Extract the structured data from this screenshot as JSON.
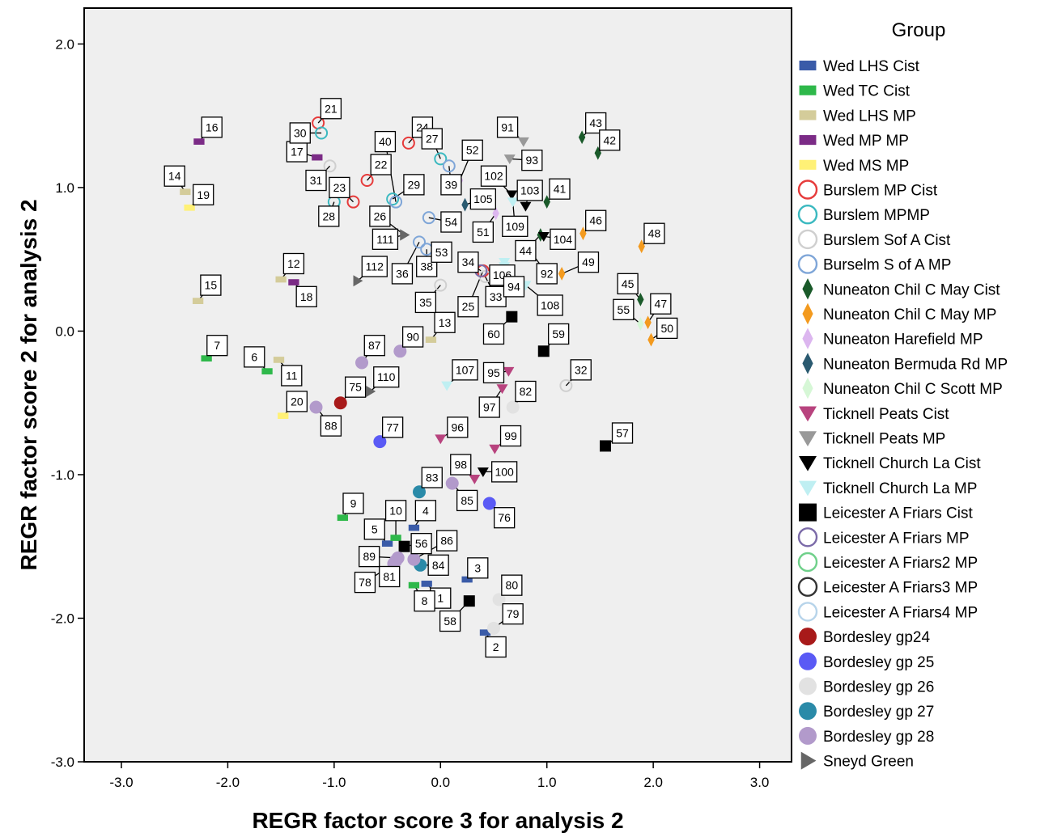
{
  "chart_data": {
    "type": "scatter",
    "xlabel": "REGR factor score   3 for analysis 2",
    "ylabel": "REGR factor score   2 for analysis 2",
    "xlim": [
      -3.35,
      3.3
    ],
    "ylim": [
      -3.0,
      2.25
    ],
    "xticks": [
      -3.0,
      -2.0,
      -1.0,
      0.0,
      1.0,
      2.0,
      3.0
    ],
    "yticks": [
      -3.0,
      -2.0,
      -1.0,
      0.0,
      1.0,
      2.0
    ],
    "xtick_labels": [
      "-3.0",
      "-2.0",
      "-1.0",
      "0.0",
      "1.0",
      "2.0",
      "3.0"
    ],
    "ytick_labels": [
      "-3.0",
      "-2.0",
      "-1.0",
      "0.0",
      "1.0",
      "2.0"
    ],
    "grid": false,
    "plot_background": "#efefef",
    "legend_title": "Group",
    "legend_placement": "right",
    "groups": [
      {
        "name": "Wed LHS Cist",
        "marker": "rect",
        "color": "#3a5ba8"
      },
      {
        "name": "Wed TC Cist",
        "marker": "rect",
        "color": "#2eb84a"
      },
      {
        "name": "Wed LHS MP",
        "marker": "rect",
        "color": "#d4cc9a"
      },
      {
        "name": "Wed MP MP",
        "marker": "rect",
        "color": "#7b2b86"
      },
      {
        "name": "Wed MS MP",
        "marker": "rect",
        "color": "#fff176"
      },
      {
        "name": "Burslem MP Cist",
        "marker": "ring",
        "color": "#e63b3b"
      },
      {
        "name": "Burslem  MPMP",
        "marker": "ring",
        "color": "#3bb9c0"
      },
      {
        "name": "Burslem Sof A Cist",
        "marker": "ring",
        "color": "#cfcfcf"
      },
      {
        "name": "Burselm  S of A  MP",
        "marker": "ring",
        "color": "#7fa6d8"
      },
      {
        "name": "Nuneaton Chil C May Cist",
        "marker": "diamond",
        "color": "#1a5a2a"
      },
      {
        "name": "Nuneaton Chil C May MP",
        "marker": "diamond",
        "color": "#f39a1e"
      },
      {
        "name": "Nuneaton Harefield MP",
        "marker": "diamond",
        "color": "#dcb6ef"
      },
      {
        "name": "Nuneaton Bermuda Rd MP",
        "marker": "diamond",
        "color": "#2a5a70"
      },
      {
        "name": "Nuneaton Chil C Scott MP",
        "marker": "diamond",
        "color": "#d6f7d6"
      },
      {
        "name": "Ticknell Peats Cist",
        "marker": "tri-down",
        "color": "#b8437e"
      },
      {
        "name": "Ticknell Peats MP",
        "marker": "tri-down",
        "color": "#999999"
      },
      {
        "name": "Ticknell Church La Cist",
        "marker": "tri-down",
        "color": "#000000"
      },
      {
        "name": "Ticknell Church La MP",
        "marker": "tri-down",
        "color": "#bfeff2"
      },
      {
        "name": "Leicester A Friars Cist",
        "marker": "square",
        "color": "#000000"
      },
      {
        "name": "Leicester A Friars MP",
        "marker": "ring",
        "color": "#7b6aa8"
      },
      {
        "name": "Leicester A Friars2 MP",
        "marker": "ring",
        "color": "#6fd08a"
      },
      {
        "name": "Leicester A Friars3 MP",
        "marker": "ring",
        "color": "#333333"
      },
      {
        "name": "Leicester A Friars4 MP",
        "marker": "ring",
        "color": "#b7d4ea"
      },
      {
        "name": "Bordesley gp24",
        "marker": "circle",
        "color": "#a81a1a"
      },
      {
        "name": "Bordesley gp 25",
        "marker": "circle",
        "color": "#5a5af5"
      },
      {
        "name": "Bordesley gp 26",
        "marker": "circle",
        "color": "#e2e2e2"
      },
      {
        "name": "Bordesley gp 27",
        "marker": "circle",
        "color": "#2a8aa8"
      },
      {
        "name": "Bordesley gp 28",
        "marker": "circle",
        "color": "#b29acb"
      },
      {
        "name": "Sneyd Green",
        "marker": "tri-right",
        "color": "#666666"
      }
    ],
    "points": [
      {
        "label": "1",
        "group": 0,
        "x": -0.13,
        "y": -1.76,
        "lx": 0.0,
        "ly": -1.86
      },
      {
        "label": "2",
        "group": 0,
        "x": 0.42,
        "y": -2.1,
        "lx": 0.52,
        "ly": -2.2
      },
      {
        "label": "3",
        "group": 0,
        "x": 0.25,
        "y": -1.73,
        "lx": 0.35,
        "ly": -1.65
      },
      {
        "label": "4",
        "group": 0,
        "x": -0.25,
        "y": -1.37,
        "lx": -0.14,
        "ly": -1.25
      },
      {
        "label": "5",
        "group": 0,
        "x": -0.5,
        "y": -1.48,
        "lx": -0.62,
        "ly": -1.38
      },
      {
        "label": "8",
        "group": 1,
        "x": -0.25,
        "y": -1.77,
        "lx": -0.15,
        "ly": -1.88
      },
      {
        "label": "10",
        "group": 1,
        "x": -0.42,
        "y": -1.44,
        "lx": -0.42,
        "ly": -1.25
      },
      {
        "label": "6",
        "group": 1,
        "x": -1.63,
        "y": -0.28,
        "lx": -1.75,
        "ly": -0.18
      },
      {
        "label": "7",
        "group": 1,
        "x": -2.2,
        "y": -0.19,
        "lx": -2.1,
        "ly": -0.1
      },
      {
        "label": "9",
        "group": 1,
        "x": -0.92,
        "y": -1.3,
        "lx": -0.82,
        "ly": -1.2
      },
      {
        "label": "11",
        "group": 2,
        "x": -1.52,
        "y": -0.2,
        "lx": -1.4,
        "ly": -0.31
      },
      {
        "label": "12",
        "group": 2,
        "x": -1.5,
        "y": 0.36,
        "lx": -1.38,
        "ly": 0.47
      },
      {
        "label": "14",
        "group": 2,
        "x": -2.4,
        "y": 0.97,
        "lx": -2.5,
        "ly": 1.08
      },
      {
        "label": "15",
        "group": 2,
        "x": -2.28,
        "y": 0.21,
        "lx": -2.16,
        "ly": 0.32
      },
      {
        "label": "13",
        "group": 2,
        "x": -0.09,
        "y": -0.06,
        "lx": 0.04,
        "ly": 0.06
      },
      {
        "label": "16",
        "group": 3,
        "x": -2.27,
        "y": 1.32,
        "lx": -2.15,
        "ly": 1.42
      },
      {
        "label": "17",
        "group": 3,
        "x": -1.16,
        "y": 1.21,
        "lx": -1.35,
        "ly": 1.25
      },
      {
        "label": "18",
        "group": 3,
        "x": -1.38,
        "y": 0.34,
        "lx": -1.26,
        "ly": 0.24
      },
      {
        "label": "19",
        "group": 4,
        "x": -2.36,
        "y": 0.86,
        "lx": -2.23,
        "ly": 0.95
      },
      {
        "label": "20",
        "group": 4,
        "x": -1.48,
        "y": -0.59,
        "lx": -1.35,
        "ly": -0.49
      },
      {
        "label": "21",
        "group": 5,
        "x": -1.15,
        "y": 1.45,
        "lx": -1.03,
        "ly": 1.55
      },
      {
        "label": "22",
        "group": 5,
        "x": -0.69,
        "y": 1.05,
        "lx": -0.56,
        "ly": 1.16
      },
      {
        "label": "23",
        "group": 5,
        "x": -0.82,
        "y": 0.9,
        "lx": -0.95,
        "ly": 1.0
      },
      {
        "label": "24",
        "group": 5,
        "x": -0.3,
        "y": 1.31,
        "lx": -0.17,
        "ly": 1.42
      },
      {
        "label": "25",
        "group": 5,
        "x": 0.4,
        "y": 0.42,
        "lx": 0.26,
        "ly": 0.17
      },
      {
        "label": "30",
        "group": 6,
        "x": -1.12,
        "y": 1.38,
        "lx": -1.32,
        "ly": 1.38
      },
      {
        "label": "29",
        "group": 6,
        "x": -0.45,
        "y": 0.92,
        "lx": -0.25,
        "ly": 1.02
      },
      {
        "label": "27",
        "group": 6,
        "x": 0.0,
        "y": 1.2,
        "lx": -0.08,
        "ly": 1.34
      },
      {
        "label": "28",
        "group": 6,
        "x": -1.0,
        "y": 0.9,
        "lx": -1.05,
        "ly": 0.8
      },
      {
        "label": "31",
        "group": 7,
        "x": -1.04,
        "y": 1.15,
        "lx": -1.17,
        "ly": 1.05
      },
      {
        "label": "35",
        "group": 7,
        "x": 0.0,
        "y": 0.32,
        "lx": -0.14,
        "ly": 0.2
      },
      {
        "label": "33",
        "group": 7,
        "x": 0.42,
        "y": 0.38,
        "lx": 0.52,
        "ly": 0.24
      },
      {
        "label": "32",
        "group": 7,
        "x": 1.18,
        "y": -0.38,
        "lx": 1.32,
        "ly": -0.27
      },
      {
        "label": "36",
        "group": 8,
        "x": -0.2,
        "y": 0.62,
        "lx": -0.36,
        "ly": 0.4
      },
      {
        "label": "38",
        "group": 8,
        "x": -0.13,
        "y": 0.57,
        "lx": -0.13,
        "ly": 0.45
      },
      {
        "label": "54",
        "group": 8,
        "x": -0.11,
        "y": 0.79,
        "lx": 0.1,
        "ly": 0.76
      },
      {
        "label": "39",
        "group": 8,
        "x": 0.08,
        "y": 1.15,
        "lx": 0.1,
        "ly": 1.02
      },
      {
        "label": "43",
        "group": 9,
        "x": 1.33,
        "y": 1.35,
        "lx": 1.46,
        "ly": 1.45
      },
      {
        "label": "42",
        "group": 9,
        "x": 1.48,
        "y": 1.24,
        "lx": 1.59,
        "ly": 1.33
      },
      {
        "label": "41",
        "group": 9,
        "x": 1.0,
        "y": 0.9,
        "lx": 1.12,
        "ly": 0.99
      },
      {
        "label": "44",
        "group": 9,
        "x": 0.94,
        "y": 0.67,
        "lx": 0.8,
        "ly": 0.56
      },
      {
        "label": "45",
        "group": 9,
        "x": 1.88,
        "y": 0.22,
        "lx": 1.76,
        "ly": 0.33
      },
      {
        "label": "46",
        "group": 10,
        "x": 1.34,
        "y": 0.68,
        "lx": 1.46,
        "ly": 0.77
      },
      {
        "label": "48",
        "group": 10,
        "x": 1.89,
        "y": 0.59,
        "lx": 2.01,
        "ly": 0.68
      },
      {
        "label": "49",
        "group": 10,
        "x": 1.14,
        "y": 0.4,
        "lx": 1.39,
        "ly": 0.48
      },
      {
        "label": "47",
        "group": 10,
        "x": 1.95,
        "y": 0.06,
        "lx": 2.07,
        "ly": 0.19
      },
      {
        "label": "50",
        "group": 10,
        "x": 1.98,
        "y": -0.06,
        "lx": 2.13,
        "ly": 0.02
      },
      {
        "label": "52",
        "group": 11,
        "x": 0.18,
        "y": 1.05,
        "lx": 0.3,
        "ly": 1.26
      },
      {
        "label": "51",
        "group": 11,
        "x": 0.52,
        "y": 0.82,
        "lx": 0.4,
        "ly": 0.69
      },
      {
        "label": "53",
        "group": 11,
        "x": 0.01,
        "y": 0.55,
        "lx": 0.01,
        "ly": 0.55
      },
      {
        "label": "105",
        "group": 12,
        "x": 0.23,
        "y": 0.88,
        "lx": 0.4,
        "ly": 0.92
      },
      {
        "label": "55",
        "group": 13,
        "x": 1.88,
        "y": 0.05,
        "lx": 1.72,
        "ly": 0.15
      },
      {
        "label": "95",
        "group": 14,
        "x": 0.64,
        "y": -0.28,
        "lx": 0.5,
        "ly": -0.29
      },
      {
        "label": "96",
        "group": 14,
        "x": 0.0,
        "y": -0.75,
        "lx": 0.16,
        "ly": -0.67
      },
      {
        "label": "99",
        "group": 14,
        "x": 0.51,
        "y": -0.82,
        "lx": 0.66,
        "ly": -0.73
      },
      {
        "label": "98",
        "group": 14,
        "x": 0.32,
        "y": -1.03,
        "lx": 0.19,
        "ly": -0.93
      },
      {
        "label": "97",
        "group": 14,
        "x": 0.58,
        "y": -0.4,
        "lx": 0.46,
        "ly": -0.53
      },
      {
        "label": "91",
        "group": 15,
        "x": 0.78,
        "y": 1.32,
        "lx": 0.63,
        "ly": 1.42
      },
      {
        "label": "93",
        "group": 15,
        "x": 0.65,
        "y": 1.2,
        "lx": 0.86,
        "ly": 1.19
      },
      {
        "label": "92",
        "group": 15,
        "x": 0.85,
        "y": 0.55,
        "lx": 1.0,
        "ly": 0.4
      },
      {
        "label": "103",
        "group": 16,
        "x": 0.8,
        "y": 0.87,
        "lx": 0.84,
        "ly": 0.98
      },
      {
        "label": "104",
        "group": 16,
        "x": 0.97,
        "y": 0.66,
        "lx": 1.15,
        "ly": 0.64
      },
      {
        "label": "100",
        "group": 16,
        "x": 0.4,
        "y": -0.98,
        "lx": 0.6,
        "ly": -0.98
      },
      {
        "label": "102",
        "group": 16,
        "x": 0.67,
        "y": 0.95,
        "lx": 0.5,
        "ly": 1.08
      },
      {
        "label": "107",
        "group": 17,
        "x": 0.06,
        "y": -0.38,
        "lx": 0.23,
        "ly": -0.27
      },
      {
        "label": "106",
        "group": 17,
        "x": 0.6,
        "y": 0.45,
        "lx": 0.58,
        "ly": 0.39
      },
      {
        "label": "109",
        "group": 17,
        "x": 0.68,
        "y": 0.9,
        "lx": 0.7,
        "ly": 0.73
      },
      {
        "label": "108",
        "group": 17,
        "x": 0.8,
        "y": 0.32,
        "lx": 1.03,
        "ly": 0.18
      },
      {
        "label": "94",
        "group": 17,
        "x": 0.6,
        "y": 0.48,
        "lx": 0.69,
        "ly": 0.31
      },
      {
        "label": "60",
        "group": 18,
        "x": 0.67,
        "y": 0.1,
        "lx": 0.5,
        "ly": -0.02
      },
      {
        "label": "59",
        "group": 18,
        "x": 0.97,
        "y": -0.14,
        "lx": 1.11,
        "ly": -0.02
      },
      {
        "label": "57",
        "group": 18,
        "x": 1.55,
        "y": -0.8,
        "lx": 1.71,
        "ly": -0.71
      },
      {
        "label": "56",
        "group": 18,
        "x": -0.34,
        "y": -1.5,
        "lx": -0.18,
        "ly": -1.48
      },
      {
        "label": "58",
        "group": 18,
        "x": 0.27,
        "y": -1.88,
        "lx": 0.09,
        "ly": -2.02
      },
      {
        "label": "34",
        "group": 19,
        "x": 0.38,
        "y": 0.42,
        "lx": 0.26,
        "ly": 0.48
      },
      {
        "label": "75",
        "group": 23,
        "x": -0.94,
        "y": -0.5,
        "lx": -0.8,
        "ly": -0.39
      },
      {
        "label": "77",
        "group": 24,
        "x": -0.57,
        "y": -0.77,
        "lx": -0.45,
        "ly": -0.67
      },
      {
        "label": "76",
        "group": 24,
        "x": 0.46,
        "y": -1.2,
        "lx": 0.6,
        "ly": -1.3
      },
      {
        "label": "82",
        "group": 25,
        "x": 0.68,
        "y": -0.53,
        "lx": 0.8,
        "ly": -0.42
      },
      {
        "label": "80",
        "group": 25,
        "x": 0.55,
        "y": -1.87,
        "lx": 0.67,
        "ly": -1.77
      },
      {
        "label": "79",
        "group": 25,
        "x": 0.5,
        "y": -2.07,
        "lx": 0.68,
        "ly": -1.97
      },
      {
        "label": "83",
        "group": 26,
        "x": -0.2,
        "y": -1.12,
        "lx": -0.08,
        "ly": -1.02
      },
      {
        "label": "84",
        "group": 26,
        "x": -0.19,
        "y": -1.63,
        "lx": -0.02,
        "ly": -1.63
      },
      {
        "label": "87",
        "group": 27,
        "x": -0.74,
        "y": -0.22,
        "lx": -0.62,
        "ly": -0.1
      },
      {
        "label": "90",
        "group": 27,
        "x": -0.38,
        "y": -0.14,
        "lx": -0.26,
        "ly": -0.04
      },
      {
        "label": "88",
        "group": 27,
        "x": -1.17,
        "y": -0.53,
        "lx": -1.03,
        "ly": -0.66
      },
      {
        "label": "85",
        "group": 27,
        "x": 0.11,
        "y": -1.06,
        "lx": 0.25,
        "ly": -1.18
      },
      {
        "label": "86",
        "group": 27,
        "x": -0.25,
        "y": -1.59,
        "lx": 0.06,
        "ly": -1.46
      },
      {
        "label": "89",
        "group": 27,
        "x": -0.4,
        "y": -1.58,
        "lx": -0.67,
        "ly": -1.57
      },
      {
        "label": "81",
        "group": 27,
        "x": -0.42,
        "y": -1.6,
        "lx": -0.48,
        "ly": -1.71
      },
      {
        "label": "78",
        "group": 27,
        "x": -0.44,
        "y": -1.62,
        "lx": -0.71,
        "ly": -1.75
      },
      {
        "label": "26",
        "group": 28,
        "x": -0.34,
        "y": 0.67,
        "lx": -0.57,
        "ly": 0.8
      },
      {
        "label": "111",
        "group": 28,
        "x": -0.34,
        "y": 0.67,
        "lx": -0.52,
        "ly": 0.64
      },
      {
        "label": "112",
        "group": 28,
        "x": -0.78,
        "y": 0.35,
        "lx": -0.62,
        "ly": 0.45
      },
      {
        "label": "110",
        "group": 28,
        "x": -0.66,
        "y": -0.42,
        "lx": -0.51,
        "ly": -0.32
      },
      {
        "label": "40",
        "group": 8,
        "x": -0.42,
        "y": 0.9,
        "lx": -0.52,
        "ly": 1.32
      }
    ]
  }
}
